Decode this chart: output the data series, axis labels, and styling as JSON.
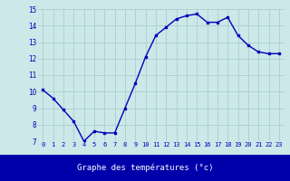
{
  "x": [
    0,
    1,
    2,
    3,
    4,
    5,
    6,
    7,
    8,
    9,
    10,
    11,
    12,
    13,
    14,
    15,
    16,
    17,
    18,
    19,
    20,
    21,
    22,
    23
  ],
  "y": [
    10.1,
    9.6,
    8.9,
    8.2,
    7.0,
    7.6,
    7.5,
    7.5,
    9.0,
    10.5,
    12.1,
    13.4,
    13.9,
    14.4,
    14.6,
    14.7,
    14.2,
    14.2,
    14.5,
    13.4,
    12.8,
    12.4,
    12.3,
    12.3
  ],
  "line_color": "#0000bb",
  "marker": "s",
  "marker_size": 1.8,
  "bg_color": "#cce8e8",
  "grid_color": "#aacece",
  "xlabel": "Graphe des températures (°c)",
  "xlabel_color": "#ffffff",
  "tick_color": "#0000bb",
  "ylim": [
    7,
    15
  ],
  "yticks": [
    7,
    8,
    9,
    10,
    11,
    12,
    13,
    14,
    15
  ],
  "xticks": [
    0,
    1,
    2,
    3,
    4,
    5,
    6,
    7,
    8,
    9,
    10,
    11,
    12,
    13,
    14,
    15,
    16,
    17,
    18,
    19,
    20,
    21,
    22,
    23
  ],
  "bottom_bar_color": "#0000aa",
  "line_width": 1.0
}
